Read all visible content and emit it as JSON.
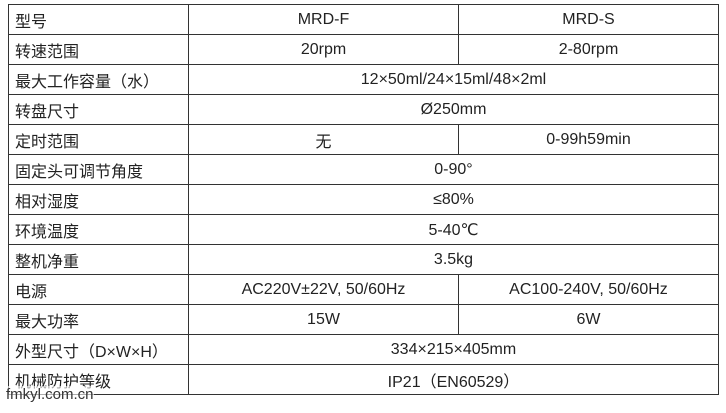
{
  "table": {
    "rows": [
      [
        "型号",
        "MRD-F",
        "MRD-S"
      ],
      [
        "转速范围",
        "20rpm",
        "2-80rpm"
      ],
      [
        "最大工作容量（水）",
        "12×50ml/24×15ml/48×2ml"
      ],
      [
        "转盘尺寸",
        "Ø250mm"
      ],
      [
        "定时范围",
        "无",
        "0-99h59min"
      ],
      [
        "固定头可调节角度",
        "0-90°"
      ],
      [
        "相对湿度",
        "≤80%"
      ],
      [
        "环境温度",
        "5-40℃"
      ],
      [
        "整机净重",
        "3.5kg"
      ],
      [
        "电源",
        "AC220V±22V, 50/60Hz",
        "AC100-240V, 50/60Hz"
      ],
      [
        "最大功率",
        "15W",
        "6W"
      ],
      [
        "外型尺寸（D×W×H）",
        "334×215×405mm"
      ],
      [
        "机械防护等级",
        "IP21（EN60529）"
      ]
    ]
  },
  "watermark": "fmkyl.com.cn"
}
